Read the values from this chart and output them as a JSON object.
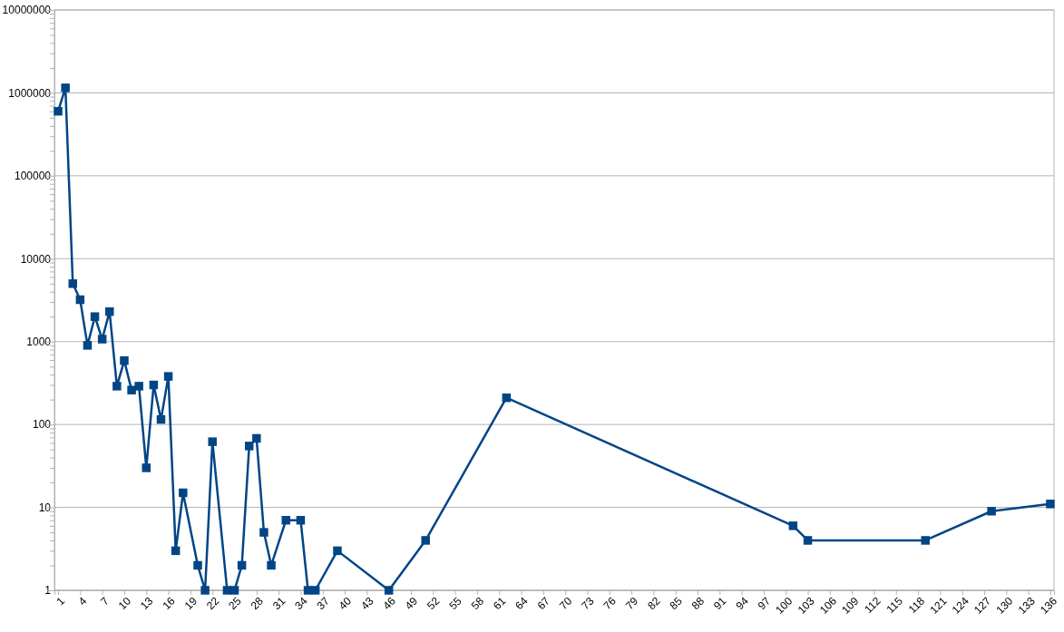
{
  "chart_data": {
    "type": "line",
    "marker": "square",
    "line_style": "solid",
    "grid": "y",
    "log": "y",
    "x": [
      1,
      2,
      3,
      4,
      5,
      6,
      7,
      8,
      9,
      10,
      11,
      12,
      13,
      14,
      15,
      16,
      17,
      18,
      20,
      21,
      22,
      24,
      25,
      26,
      27,
      28,
      29,
      30,
      32,
      34,
      35,
      36,
      39,
      46,
      51,
      62,
      101,
      103,
      119,
      128,
      136
    ],
    "series": [
      {
        "color": "#004586",
        "values": [
          600000,
          1150000,
          5000,
          3200,
          900,
          2000,
          1070,
          2300,
          290,
          590,
          260,
          290,
          30,
          300,
          115,
          380,
          3,
          15,
          2,
          1,
          62,
          1,
          1,
          2,
          55,
          68,
          5,
          2,
          7,
          7,
          1,
          1,
          3,
          1,
          4,
          210,
          6,
          4,
          4,
          9,
          11
        ]
      }
    ],
    "xlim": [
      0.5,
      136.5
    ],
    "xticks": [
      1,
      4,
      7,
      10,
      13,
      16,
      19,
      22,
      25,
      28,
      31,
      34,
      37,
      40,
      43,
      46,
      49,
      52,
      55,
      58,
      61,
      64,
      67,
      70,
      73,
      76,
      79,
      82,
      85,
      88,
      91,
      94,
      97,
      100,
      103,
      106,
      109,
      112,
      115,
      118,
      121,
      124,
      127,
      130,
      133,
      136
    ],
    "ylim": [
      1,
      10000000
    ],
    "yticks": [
      1,
      {
        "value": 2,
        "label": null
      },
      {
        "value": 3,
        "label": null
      },
      {
        "value": 4,
        "label": null
      },
      {
        "value": 5,
        "label": null
      },
      {
        "value": 6,
        "label": null
      },
      {
        "value": 7,
        "label": null
      },
      {
        "value": 8,
        "label": null
      },
      {
        "value": 9,
        "label": null
      },
      10,
      {
        "value": 20,
        "label": null
      },
      {
        "value": 30,
        "label": null
      },
      {
        "value": 40,
        "label": null
      },
      {
        "value": 50,
        "label": null
      },
      {
        "value": 60,
        "label": null
      },
      {
        "value": 70,
        "label": null
      },
      {
        "value": 80,
        "label": null
      },
      {
        "value": 90,
        "label": null
      },
      100,
      {
        "value": 200,
        "label": null
      },
      {
        "value": 300,
        "label": null
      },
      {
        "value": 400,
        "label": null
      },
      {
        "value": 500,
        "label": null
      },
      {
        "value": 600,
        "label": null
      },
      {
        "value": 700,
        "label": null
      },
      {
        "value": 800,
        "label": null
      },
      {
        "value": 900,
        "label": null
      },
      1000,
      {
        "value": 2000,
        "label": null
      },
      {
        "value": 3000,
        "label": null
      },
      {
        "value": 4000,
        "label": null
      },
      {
        "value": 5000,
        "label": null
      },
      {
        "value": 6000,
        "label": null
      },
      {
        "value": 7000,
        "label": null
      },
      {
        "value": 8000,
        "label": null
      },
      {
        "value": 9000,
        "label": null
      },
      10000,
      {
        "value": 20000,
        "label": null
      },
      {
        "value": 30000,
        "label": null
      },
      {
        "value": 40000,
        "label": null
      },
      {
        "value": 50000,
        "label": null
      },
      {
        "value": 60000,
        "label": null
      },
      {
        "value": 70000,
        "label": null
      },
      {
        "value": 80000,
        "label": null
      },
      {
        "value": 90000,
        "label": null
      },
      100000,
      {
        "value": 200000,
        "label": null
      },
      {
        "value": 300000,
        "label": null
      },
      {
        "value": 400000,
        "label": null
      },
      {
        "value": 500000,
        "label": null
      },
      {
        "value": 600000,
        "label": null
      },
      {
        "value": 700000,
        "label": null
      },
      {
        "value": 800000,
        "label": null
      },
      {
        "value": 900000,
        "label": null
      },
      1000000,
      {
        "value": 2000000,
        "label": null
      },
      {
        "value": 3000000,
        "label": null
      },
      {
        "value": 4000000,
        "label": null
      },
      {
        "value": 5000000,
        "label": null
      },
      {
        "value": 6000000,
        "label": null
      },
      {
        "value": 7000000,
        "label": null
      },
      {
        "value": 8000000,
        "label": null
      },
      {
        "value": 9000000,
        "label": null
      },
      10000000
    ]
  }
}
